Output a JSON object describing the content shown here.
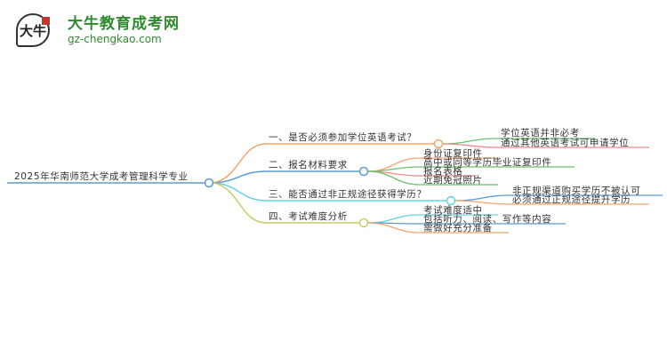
{
  "logo": {
    "name": "大牛教育成考网",
    "url": "gz-chengkao.com",
    "mark": "大牛"
  },
  "root": "2025年华南师范大学成考管理科学专业",
  "branches": [
    {
      "label": "一、是否必须参加学位英语考试？",
      "children": [
        "学位英语并非必考",
        "通过其他英语考试可申请学位"
      ]
    },
    {
      "label": "二、报名材料要求",
      "children": [
        "身份证复印件",
        "高中或同等学历毕业证复印件",
        "报名表格",
        "近期免冠照片"
      ]
    },
    {
      "label": "三、能否通过非正规途径获得学历？",
      "children": [
        "非正规渠道购买学历不被认可",
        "必须通过正规途径提升学历"
      ]
    },
    {
      "label": "四、考试难度分析",
      "children": [
        "考试难度适中",
        "包括听力、阅读、写作等内容",
        "需做好充分准备"
      ]
    }
  ],
  "colors": {
    "orange": "#f7a36a",
    "blue": "#5b9bd5",
    "cyan": "#63d3e3",
    "olive": "#cccc66",
    "green": "#6cc070",
    "red": "#f08a8a",
    "brand": "#2e8b2e"
  }
}
